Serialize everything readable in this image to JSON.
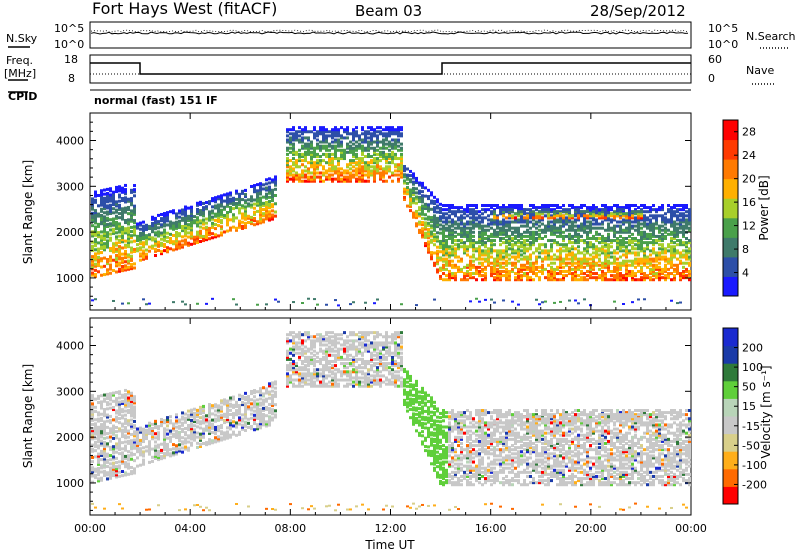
{
  "header": {
    "station": "Fort Hays West (fitACF)",
    "beam": "Beam 03",
    "date": "28/Sep/2012"
  },
  "strip": {
    "nsky_label": "N.Sky",
    "nsearch_label": "N.Search",
    "noise_ticks": [
      "10^5",
      "10^0"
    ],
    "freq_label": "Freq.",
    "freq_unit": "[MHz]",
    "freq_ticks": [
      "18",
      "8"
    ],
    "nave_label": "Nave",
    "nave_ticks": [
      "60",
      "0"
    ],
    "cpid_label": "CPID",
    "cpid_value": "normal (fast) 151 IF"
  },
  "colors": {
    "power": [
      "#1a1aff",
      "#2d4fa8",
      "#3f7a6a",
      "#4aa04a",
      "#a8cf2a",
      "#ffb000",
      "#ff7a00",
      "#ff3a00",
      "#ff0000"
    ],
    "velocity": [
      "#ff0000",
      "#ff6a00",
      "#ffae1a",
      "#d8cf8a",
      "#c8c8c8",
      "#b8d4b8",
      "#5fcf3a",
      "#2f7a3a",
      "#1a3aa8",
      "#1a2ad0"
    ]
  },
  "chart_data": [
    {
      "type": "heatmap",
      "quantity": "Power",
      "ylabel": "Slant Range [km]",
      "ylim": [
        300,
        4600
      ],
      "yticks": [
        1000,
        2000,
        3000,
        4000
      ],
      "xlim": [
        0,
        24
      ],
      "xticks": [
        "00:00",
        "04:00",
        "08:00",
        "12:00",
        "16:00",
        "20:00",
        "00:00"
      ],
      "colorbar_label": "Power [dB]",
      "colorbar_ticks": [
        4,
        8,
        12,
        16,
        20,
        24,
        28
      ],
      "colorbar_range": [
        0,
        30
      ]
    },
    {
      "type": "heatmap",
      "quantity": "Velocity",
      "ylabel": "Slant Range [km]",
      "ylim": [
        300,
        4600
      ],
      "yticks": [
        1000,
        2000,
        3000,
        4000
      ],
      "xlim": [
        0,
        24
      ],
      "xticks": [
        "00:00",
        "04:00",
        "08:00",
        "12:00",
        "16:00",
        "20:00",
        "00:00"
      ],
      "xlabel": "Time UT",
      "colorbar_label": "Velocity [m s⁻¹]",
      "colorbar_ticks": [
        -200,
        -100,
        -50,
        -15,
        15,
        50,
        100,
        200
      ],
      "colorbar_range": [
        -250,
        250
      ]
    }
  ]
}
